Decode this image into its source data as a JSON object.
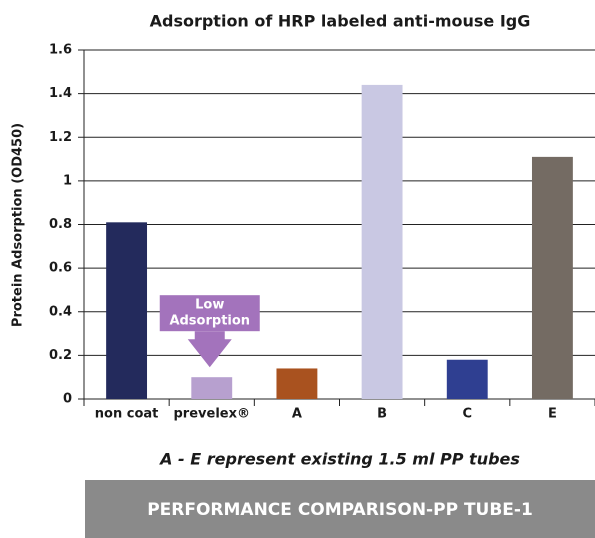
{
  "chart_data": {
    "type": "bar",
    "title": "Adsorption of HRP labeled anti-mouse IgG",
    "y_label": "Protein Adsorption (OD450)",
    "categories": [
      "non coat",
      "prevelex®",
      "A",
      "B",
      "C",
      "E"
    ],
    "values": [
      0.81,
      0.1,
      0.14,
      1.44,
      0.18,
      1.11
    ],
    "colors": [
      "#232a5c",
      "#b7a0cf",
      "#a9521f",
      "#c9c8e3",
      "#2f3f91",
      "#746b63"
    ],
    "ylim": [
      0,
      1.6
    ],
    "yticks": [
      0,
      0.2,
      0.4,
      0.6,
      0.8,
      1,
      1.2,
      1.4,
      1.6
    ],
    "grid": true,
    "annotation": {
      "lines": [
        "Low",
        "Adsorption"
      ],
      "category": 1,
      "color": "#a373bc"
    }
  },
  "footer": {
    "note": "A - E represent existing 1.5 ml PP tubes",
    "banner": "PERFORMANCE COMPARISON-PP TUBE-1"
  }
}
